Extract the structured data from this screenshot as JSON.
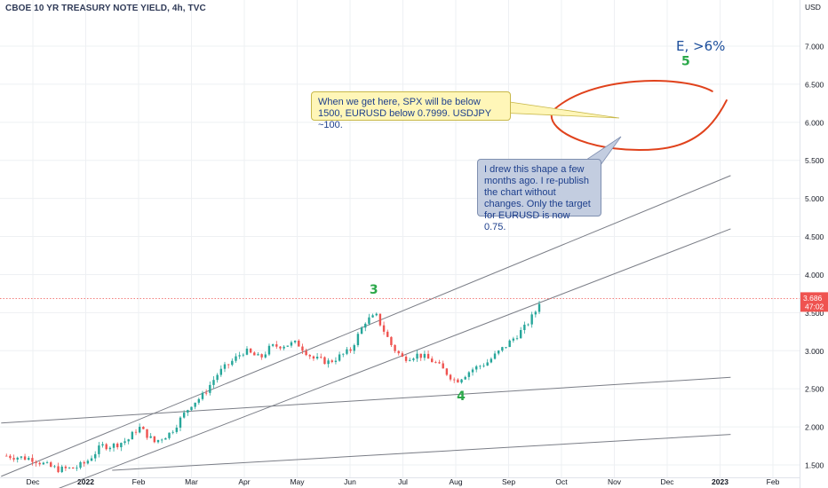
{
  "chart_data": {
    "type": "candlestick",
    "title": "CBOE 10 YR TREASURY NOTE YIELD, 4h, TVC",
    "y_axis": {
      "unit": "USD",
      "ticks": [
        "7.000",
        "6.500",
        "6.000",
        "5.500",
        "5.000",
        "4.500",
        "4.000",
        "3.500",
        "3.000",
        "2.500",
        "2.000",
        "1.500"
      ],
      "range": [
        1.43,
        7.4
      ]
    },
    "x_axis": {
      "ticks": [
        "Dec",
        "2022",
        "Feb",
        "Mar",
        "Apr",
        "May",
        "Jun",
        "Jul",
        "Aug",
        "Sep",
        "Oct",
        "Nov",
        "Dec",
        "2023",
        "Feb"
      ]
    },
    "last_price": {
      "value": "3.686",
      "countdown": "47:02"
    },
    "price_path": [
      [
        -0.5,
        1.62
      ],
      [
        0,
        1.58
      ],
      [
        0.3,
        1.48
      ],
      [
        0.5,
        1.44
      ],
      [
        0.8,
        1.46
      ],
      [
        1,
        1.53
      ],
      [
        1.3,
        1.75
      ],
      [
        1.5,
        1.75
      ],
      [
        1.8,
        1.83
      ],
      [
        2,
        2.0
      ],
      [
        2.3,
        1.8
      ],
      [
        2.6,
        1.92
      ],
      [
        3,
        2.3
      ],
      [
        3.2,
        2.4
      ],
      [
        3.5,
        2.7
      ],
      [
        4,
        3.0
      ],
      [
        4.3,
        2.9
      ],
      [
        4.5,
        3.05
      ],
      [
        5,
        3.1
      ],
      [
        5.3,
        2.9
      ],
      [
        5.6,
        2.85
      ],
      [
        6,
        3.0
      ],
      [
        6.3,
        3.4
      ],
      [
        6.5,
        3.45
      ],
      [
        6.8,
        3.05
      ],
      [
        7,
        2.9
      ],
      [
        7.3,
        2.95
      ],
      [
        7.6,
        2.85
      ],
      [
        8,
        2.6
      ],
      [
        8.3,
        2.75
      ],
      [
        8.6,
        2.85
      ],
      [
        9,
        3.1
      ],
      [
        9.3,
        3.3
      ],
      [
        9.5,
        3.5
      ],
      [
        9.6,
        3.68
      ]
    ],
    "trendlines": [
      {
        "from": [
          -0.6,
          1.35
        ],
        "to": [
          13.2,
          5.3
        ]
      },
      {
        "from": [
          -0.6,
          0.9
        ],
        "to": [
          13.2,
          4.6
        ]
      },
      {
        "from": [
          -0.6,
          2.05
        ],
        "to": [
          13.2,
          2.65
        ]
      },
      {
        "from": [
          1.5,
          1.43
        ],
        "to": [
          13.2,
          1.9
        ]
      }
    ],
    "target_ellipse": {
      "x_range": [
        10.0,
        13.0
      ],
      "y_range": [
        5.6,
        6.55
      ]
    },
    "wave_labels": [
      {
        "text": "3",
        "x": 6.45,
        "y": 3.75
      },
      {
        "text": "4",
        "x": 8.1,
        "y": 2.35
      },
      {
        "text": "5",
        "x": 12.35,
        "y": 6.75
      }
    ],
    "target_label": "E, >6%",
    "annotations": [
      "When we get here, SPX will be below 1500, EURUSD below 0.7999. USDJPY ~100.",
      "I drew this shape a few months ago. I re-publish the chart without changes. Only the target for EURUSD is now 0.75."
    ],
    "colors": {
      "up_candle": "#26a69a",
      "down_candle": "#ef5350",
      "target_shape": "#e0421c",
      "wave_label": "#2ba84a",
      "last_price_badge": "#ef5350"
    }
  }
}
